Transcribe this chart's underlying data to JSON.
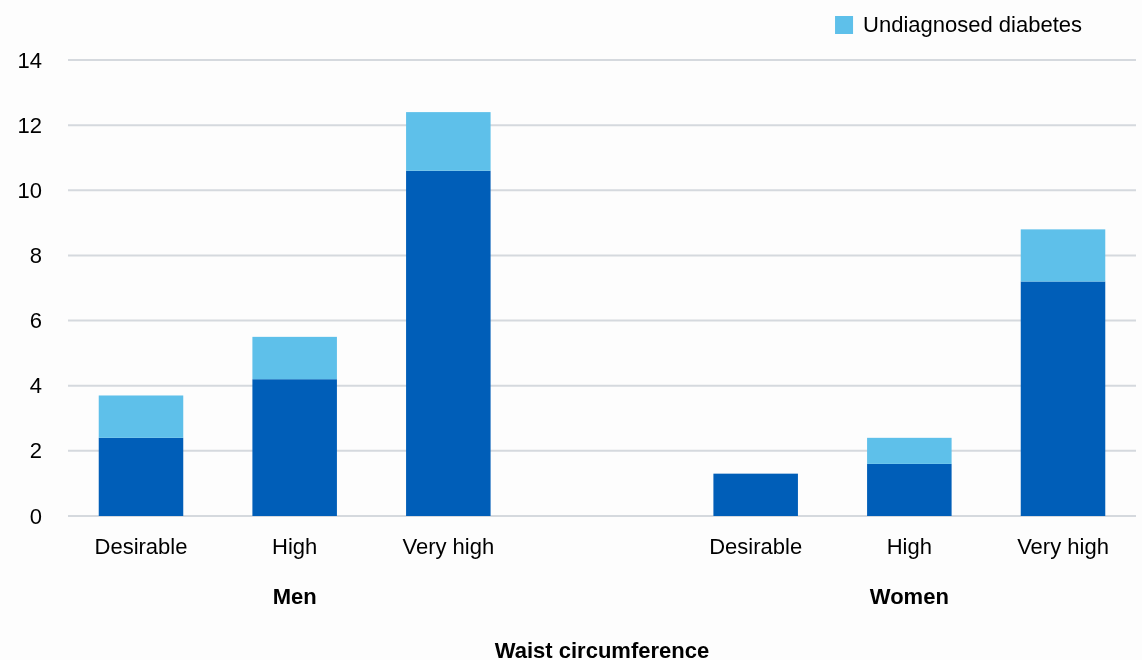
{
  "chart_data": {
    "type": "bar",
    "stacked": true,
    "xlabel": "Waist circumference",
    "categories": [
      "Desirable",
      "High",
      "Very high",
      null,
      "Desirable",
      "High",
      "Very high"
    ],
    "series": [
      {
        "color": "#005eb8",
        "values": [
          2.4,
          4.2,
          10.6,
          null,
          1.3,
          1.6,
          7.2
        ]
      },
      {
        "name": "Undiagnosed diabetes",
        "color": "#5ec0ea",
        "values": [
          1.3,
          1.3,
          1.8,
          null,
          0,
          0.8,
          1.6
        ]
      }
    ],
    "annotations": [
      "Men",
      "Women"
    ],
    "ylim": [
      0,
      14
    ],
    "yticks": [
      0,
      2,
      4,
      6,
      8,
      10,
      12,
      14
    ],
    "grid": "y",
    "legend": "top right"
  }
}
